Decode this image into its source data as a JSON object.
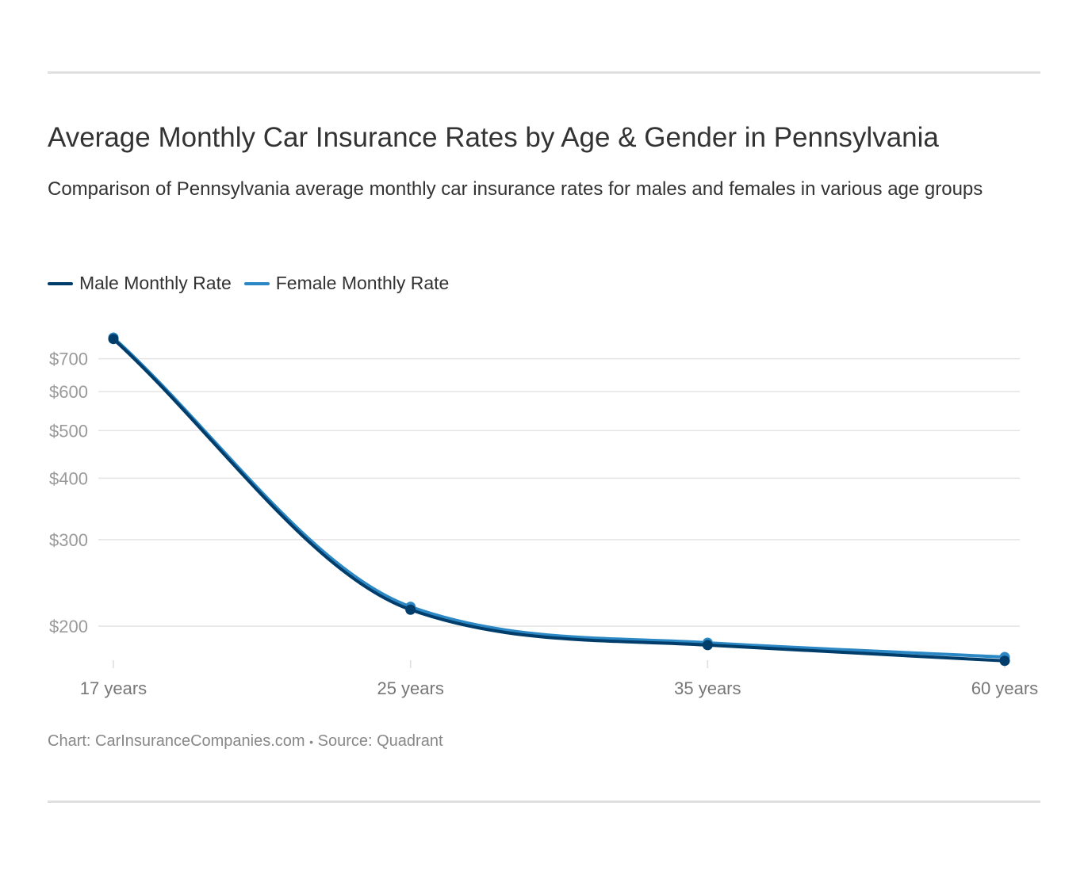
{
  "title": "Average Monthly Car Insurance Rates by Age & Gender in Pennsylvania",
  "subtitle": "Comparison of Pennsylvania average monthly car insurance rates for males and females in various age groups",
  "footer": {
    "chart_label": "Chart: CarInsuranceCompanies.com",
    "separator": "•",
    "source": "Source: Quadrant"
  },
  "chart_data": {
    "type": "line",
    "title": "Average Monthly Car Insurance Rates by Age & Gender in Pennsylvania",
    "categories": [
      "17 years",
      "25 years",
      "35 years",
      "60 years"
    ],
    "y_scale": "log",
    "y_ticks": [
      200,
      300,
      400,
      500,
      600,
      700
    ],
    "y_tick_labels": [
      "$200",
      "$300",
      "$400",
      "$500",
      "$600",
      "$700"
    ],
    "grid": true,
    "legend_position": "top-left",
    "series": [
      {
        "name": "Male Monthly Rate",
        "color": "#003d6b",
        "values": [
          768,
          216,
          183,
          170
        ]
      },
      {
        "name": "Female Monthly Rate",
        "color": "#2b88c4",
        "values": [
          773,
          219,
          185,
          173
        ]
      }
    ]
  }
}
